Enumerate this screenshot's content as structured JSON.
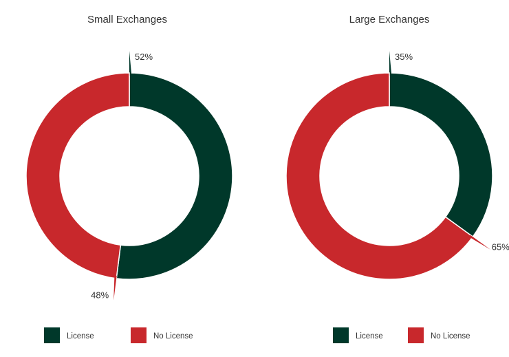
{
  "chart_data": [
    {
      "type": "pie",
      "title": "Small Exchanges",
      "slices": [
        {
          "label": "License",
          "value": 52,
          "display": "52%",
          "color": "#00382a"
        },
        {
          "label": "No License",
          "value": 48,
          "display": "48%",
          "color": "#c8282c"
        }
      ],
      "legend": {
        "placement": "bottom",
        "items": [
          {
            "label": "License",
            "color": "#00382a"
          },
          {
            "label": "No License",
            "color": "#c8282c"
          }
        ]
      }
    },
    {
      "type": "pie",
      "title": "Large Exchanges",
      "slices": [
        {
          "label": "License",
          "value": 35,
          "display": "35%",
          "color": "#00382a"
        },
        {
          "label": "No License",
          "value": 65,
          "display": "65%",
          "color": "#c8282c"
        }
      ],
      "legend": {
        "placement": "bottom",
        "items": [
          {
            "label": "License",
            "color": "#00382a"
          },
          {
            "label": "No License",
            "color": "#c8282c"
          }
        ]
      }
    }
  ]
}
